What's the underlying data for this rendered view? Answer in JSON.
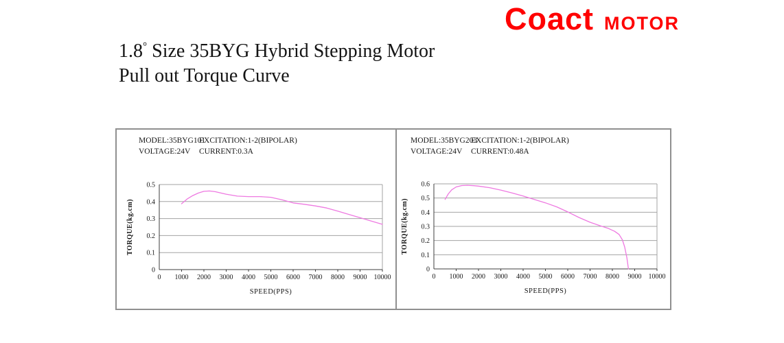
{
  "logo": {
    "brand": "Coact",
    "suffix": "MOTOR",
    "color": "#ff0000"
  },
  "title": {
    "line1_value": "1.8",
    "line1_degree": "°",
    "line1_rest": " Size 35BYG Hybrid Stepping Motor",
    "line2": "Pull out Torque Curve"
  },
  "chart_data": [
    {
      "type": "line",
      "model": "MODEL:35BYG101",
      "excitation": "EXCITATION:1-2(BIPOLAR)",
      "voltage": "VOLTAGE:24V",
      "current": "CURRENT:0.3A",
      "xlabel": "SPEED(PPS)",
      "ylabel": "TORQUE(kg.cm)",
      "xlim": [
        0,
        10000
      ],
      "ylim": [
        0,
        0.5
      ],
      "xticks": [
        0,
        1000,
        2000,
        3000,
        4000,
        5000,
        6000,
        7000,
        8000,
        9000,
        10000
      ],
      "yticks": [
        0,
        0.1,
        0.2,
        0.3,
        0.4,
        0.5
      ],
      "grid": "horizontal",
      "legend": "none",
      "line_color": "#ee79e1",
      "series": [
        {
          "name": "pull-out-torque",
          "points": [
            [
              1000,
              0.387
            ],
            [
              1250,
              0.415
            ],
            [
              1500,
              0.435
            ],
            [
              1750,
              0.45
            ],
            [
              2000,
              0.46
            ],
            [
              2250,
              0.462
            ],
            [
              2500,
              0.458
            ],
            [
              3000,
              0.443
            ],
            [
              3500,
              0.432
            ],
            [
              4000,
              0.429
            ],
            [
              4500,
              0.429
            ],
            [
              5000,
              0.425
            ],
            [
              5500,
              0.41
            ],
            [
              6000,
              0.392
            ],
            [
              6500,
              0.384
            ],
            [
              7000,
              0.374
            ],
            [
              7500,
              0.362
            ],
            [
              8000,
              0.344
            ],
            [
              8500,
              0.324
            ],
            [
              9000,
              0.305
            ],
            [
              9500,
              0.285
            ],
            [
              10000,
              0.266
            ]
          ]
        }
      ]
    },
    {
      "type": "line",
      "model": "MODEL:35BYG203",
      "excitation": "EXCITATION:1-2(BIPOLAR)",
      "voltage": "VOLTAGE:24V",
      "current": "CURRENT:0.48A",
      "xlabel": "SPEED(PPS)",
      "ylabel": "TORQUE(kg.cm)",
      "xlim": [
        0,
        10000
      ],
      "ylim": [
        0,
        0.6
      ],
      "xticks": [
        0,
        1000,
        2000,
        3000,
        4000,
        5000,
        6000,
        7000,
        8000,
        9000,
        10000
      ],
      "yticks": [
        0,
        0.1,
        0.2,
        0.3,
        0.4,
        0.5,
        0.6
      ],
      "grid": "horizontal",
      "legend": "none",
      "line_color": "#ee79e1",
      "series": [
        {
          "name": "pull-out-torque",
          "points": [
            [
              500,
              0.49
            ],
            [
              650,
              0.53
            ],
            [
              800,
              0.558
            ],
            [
              1000,
              0.578
            ],
            [
              1250,
              0.588
            ],
            [
              1500,
              0.59
            ],
            [
              1800,
              0.587
            ],
            [
              2000,
              0.584
            ],
            [
              2500,
              0.573
            ],
            [
              3000,
              0.556
            ],
            [
              3500,
              0.536
            ],
            [
              4000,
              0.514
            ],
            [
              4500,
              0.49
            ],
            [
              5000,
              0.466
            ],
            [
              5500,
              0.438
            ],
            [
              6000,
              0.402
            ],
            [
              6500,
              0.363
            ],
            [
              7000,
              0.329
            ],
            [
              7500,
              0.302
            ],
            [
              7800,
              0.287
            ],
            [
              8100,
              0.265
            ],
            [
              8300,
              0.243
            ],
            [
              8450,
              0.205
            ],
            [
              8550,
              0.155
            ],
            [
              8650,
              0.08
            ],
            [
              8720,
              0.0
            ]
          ]
        }
      ]
    }
  ]
}
